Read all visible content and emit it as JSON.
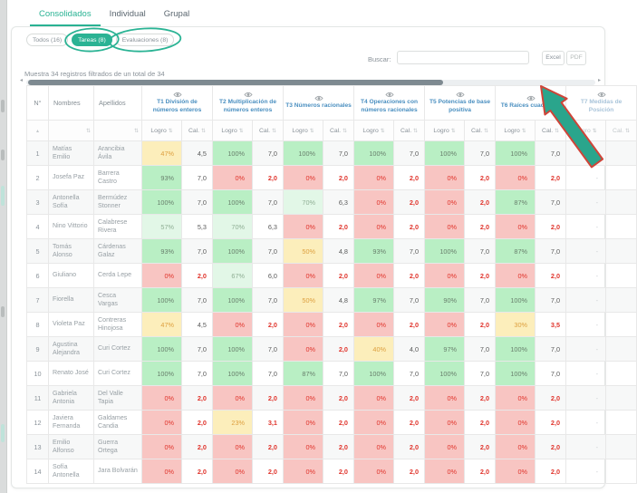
{
  "tabs": [
    {
      "label": "Consolidados",
      "active": true
    },
    {
      "label": "Individual",
      "active": false
    },
    {
      "label": "Grupal",
      "active": false
    }
  ],
  "filters": {
    "items": [
      {
        "label": "Todos (16)",
        "active": false,
        "circled": false
      },
      {
        "label": "Tareas (8)",
        "active": true,
        "circled": true
      },
      {
        "label": "Evaluaciones (8)",
        "active": false,
        "circled": true
      }
    ]
  },
  "search": {
    "label": "Buscar:",
    "value": ""
  },
  "export": {
    "excel_label": "Excel",
    "pdf_label": "PDF"
  },
  "summary_text": "Muestra 34 registros filtrados de un total de 34",
  "table": {
    "fixed_headers": [
      "N°",
      "Nombres",
      "Apellidos"
    ],
    "sub_headers": [
      "Logro",
      "Cal."
    ],
    "task_headers": [
      {
        "title": "T1 División de números enteros",
        "disabled": false
      },
      {
        "title": "T2 Multiplicación de números enteros",
        "disabled": false
      },
      {
        "title": "T3 Números racionales",
        "disabled": false
      },
      {
        "title": "T4 Operaciones con números racionales",
        "disabled": false
      },
      {
        "title": "T5 Potencias de base positiva",
        "disabled": false
      },
      {
        "title": "T6 Raíces cuadradas",
        "disabled": false
      },
      {
        "title": "T7 Medidas de Posición",
        "disabled": true
      }
    ],
    "rows": [
      {
        "n": 1,
        "nombres": "Matías Emilio",
        "apellidos": "Arancibia Ávila",
        "scores": [
          [
            "47%",
            "4,5"
          ],
          [
            "100%",
            "7,0"
          ],
          [
            "100%",
            "7,0"
          ],
          [
            "100%",
            "7,0"
          ],
          [
            "100%",
            "7,0"
          ],
          [
            "100%",
            "7,0"
          ]
        ],
        "t7": "-"
      },
      {
        "n": 2,
        "nombres": "Josefa Paz",
        "apellidos": "Barrera Castro",
        "scores": [
          [
            "93%",
            "7,0"
          ],
          [
            "0%",
            "2,0"
          ],
          [
            "0%",
            "2,0"
          ],
          [
            "0%",
            "2,0"
          ],
          [
            "0%",
            "2,0"
          ],
          [
            "0%",
            "2,0"
          ]
        ],
        "t7": "-"
      },
      {
        "n": 3,
        "nombres": "Antonella Sofía",
        "apellidos": "Bermúdez Stonner",
        "scores": [
          [
            "100%",
            "7,0"
          ],
          [
            "100%",
            "7,0"
          ],
          [
            "70%",
            "6,3"
          ],
          [
            "0%",
            "2,0"
          ],
          [
            "0%",
            "2,0"
          ],
          [
            "87%",
            "7,0"
          ]
        ],
        "t7": "-"
      },
      {
        "n": 4,
        "nombres": "Nino Vittorio",
        "apellidos": "Calabrese Rivera",
        "scores": [
          [
            "57%",
            "5,3"
          ],
          [
            "70%",
            "6,3"
          ],
          [
            "0%",
            "2,0"
          ],
          [
            "0%",
            "2,0"
          ],
          [
            "0%",
            "2,0"
          ],
          [
            "0%",
            "2,0"
          ]
        ],
        "t7": "-"
      },
      {
        "n": 5,
        "nombres": "Tomás Alonso",
        "apellidos": "Cárdenas Galaz",
        "scores": [
          [
            "93%",
            "7,0"
          ],
          [
            "100%",
            "7,0"
          ],
          [
            "50%",
            "4,8"
          ],
          [
            "93%",
            "7,0"
          ],
          [
            "100%",
            "7,0"
          ],
          [
            "87%",
            "7,0"
          ]
        ],
        "t7": "-"
      },
      {
        "n": 6,
        "nombres": "Giuliano",
        "apellidos": "Cerda Lepe",
        "scores": [
          [
            "0%",
            "2,0"
          ],
          [
            "67%",
            "6,0"
          ],
          [
            "0%",
            "2,0"
          ],
          [
            "0%",
            "2,0"
          ],
          [
            "0%",
            "2,0"
          ],
          [
            "0%",
            "2,0"
          ]
        ],
        "t7": "-"
      },
      {
        "n": 7,
        "nombres": "Fiorella",
        "apellidos": "Cesca Vargas",
        "scores": [
          [
            "100%",
            "7,0"
          ],
          [
            "100%",
            "7,0"
          ],
          [
            "50%",
            "4,8"
          ],
          [
            "97%",
            "7,0"
          ],
          [
            "90%",
            "7,0"
          ],
          [
            "100%",
            "7,0"
          ]
        ],
        "t7": "-"
      },
      {
        "n": 8,
        "nombres": "Violeta Paz",
        "apellidos": "Contreras Hinojosa",
        "scores": [
          [
            "47%",
            "4,5"
          ],
          [
            "0%",
            "2,0"
          ],
          [
            "0%",
            "2,0"
          ],
          [
            "0%",
            "2,0"
          ],
          [
            "0%",
            "2,0"
          ],
          [
            "30%",
            "3,5"
          ]
        ],
        "t7": "-"
      },
      {
        "n": 9,
        "nombres": "Agustina Alejandra",
        "apellidos": "Curi Cortez",
        "scores": [
          [
            "100%",
            "7,0"
          ],
          [
            "100%",
            "7,0"
          ],
          [
            "0%",
            "2,0"
          ],
          [
            "40%",
            "4,0"
          ],
          [
            "97%",
            "7,0"
          ],
          [
            "100%",
            "7,0"
          ]
        ],
        "t7": "-"
      },
      {
        "n": 10,
        "nombres": "Renato José",
        "apellidos": "Curi Cortez",
        "scores": [
          [
            "100%",
            "7,0"
          ],
          [
            "100%",
            "7,0"
          ],
          [
            "87%",
            "7,0"
          ],
          [
            "100%",
            "7,0"
          ],
          [
            "100%",
            "7,0"
          ],
          [
            "100%",
            "7,0"
          ]
        ],
        "t7": "-"
      },
      {
        "n": 11,
        "nombres": "Gabriela Antonia",
        "apellidos": "Del Valle Tapia",
        "scores": [
          [
            "0%",
            "2,0"
          ],
          [
            "0%",
            "2,0"
          ],
          [
            "0%",
            "2,0"
          ],
          [
            "0%",
            "2,0"
          ],
          [
            "0%",
            "2,0"
          ],
          [
            "0%",
            "2,0"
          ]
        ],
        "t7": "-"
      },
      {
        "n": 12,
        "nombres": "Javiera Fernanda",
        "apellidos": "Galdames Candia",
        "scores": [
          [
            "0%",
            "2,0"
          ],
          [
            "23%",
            "3,1"
          ],
          [
            "0%",
            "2,0"
          ],
          [
            "0%",
            "2,0"
          ],
          [
            "0%",
            "2,0"
          ],
          [
            "0%",
            "2,0"
          ]
        ],
        "t7": "-"
      },
      {
        "n": 13,
        "nombres": "Emilio Alfonso",
        "apellidos": "Guerra Ortega",
        "scores": [
          [
            "0%",
            "2,0"
          ],
          [
            "0%",
            "2,0"
          ],
          [
            "0%",
            "2,0"
          ],
          [
            "0%",
            "2,0"
          ],
          [
            "0%",
            "2,0"
          ],
          [
            "0%",
            "2,0"
          ]
        ],
        "t7": "-"
      },
      {
        "n": 14,
        "nombres": "Sofía Antonella",
        "apellidos": "Jara Bolvarán",
        "scores": [
          [
            "0%",
            "2,0"
          ],
          [
            "0%",
            "2,0"
          ],
          [
            "0%",
            "2,0"
          ],
          [
            "0%",
            "2,0"
          ],
          [
            "0%",
            "2,0"
          ],
          [
            "0%",
            "2,0"
          ]
        ],
        "t7": "-"
      }
    ]
  },
  "icons": {
    "column_toggle": "eye-icon",
    "sort": "sort-arrows-icon",
    "scroll_left": "left-arrow-icon",
    "scroll_right": "right-arrow-icon"
  },
  "annotations": {
    "color": "#2ab394",
    "arrow_outline": "#cf4438",
    "circled_labels": [
      "Tareas (8)",
      "Evaluaciones (8)"
    ],
    "arrow": {
      "points_to": "horizontal-scrollbar-right-end"
    }
  },
  "colors": {
    "accent_teal": "#2ab394",
    "task_header_blue": "#4a8fc0",
    "cell_green": "#b9efc4",
    "cell_light_green": "#e2f7e7",
    "cell_yellow": "#fceebb",
    "cell_red": "#f8c5c2",
    "negative_text": "#e0342c",
    "warning_text": "#dd9f3e"
  }
}
